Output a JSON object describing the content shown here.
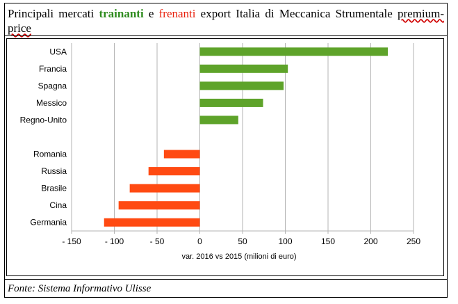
{
  "header": {
    "title_part1": "Principali mercati ",
    "title_green": "trainanti",
    "title_mid": " e ",
    "title_red": "frenanti",
    "title_part2": " export Italia di Meccanica Strumentale ",
    "title_part3": "premium-price"
  },
  "footer": {
    "source": "Fonte: Sistema Informativo Ulisse"
  },
  "colors": {
    "positive": "#5ea32a",
    "negative": "#ff4a12",
    "grid": "#b3b3b3"
  },
  "chart_data": {
    "type": "bar",
    "orientation": "horizontal",
    "categories": [
      "USA",
      "Francia",
      "Spagna",
      "Messico",
      "Regno-Unito",
      "",
      "Romania",
      "Russia",
      "Brasile",
      "Cina",
      "Germania"
    ],
    "values": [
      220,
      103,
      98,
      74,
      45,
      null,
      -42,
      -60,
      -82,
      -95,
      -112
    ],
    "xlabel": "var. 2016 vs 2015 (milioni di euro)",
    "xlim": [
      -150,
      250
    ],
    "xticks": [
      -150,
      -100,
      -50,
      0,
      50,
      100,
      150,
      200,
      250
    ],
    "xtick_labels": [
      "- 150",
      "- 100",
      "- 50",
      "0",
      "50",
      "100",
      "150",
      "200",
      "250"
    ],
    "grid": "vertical"
  }
}
